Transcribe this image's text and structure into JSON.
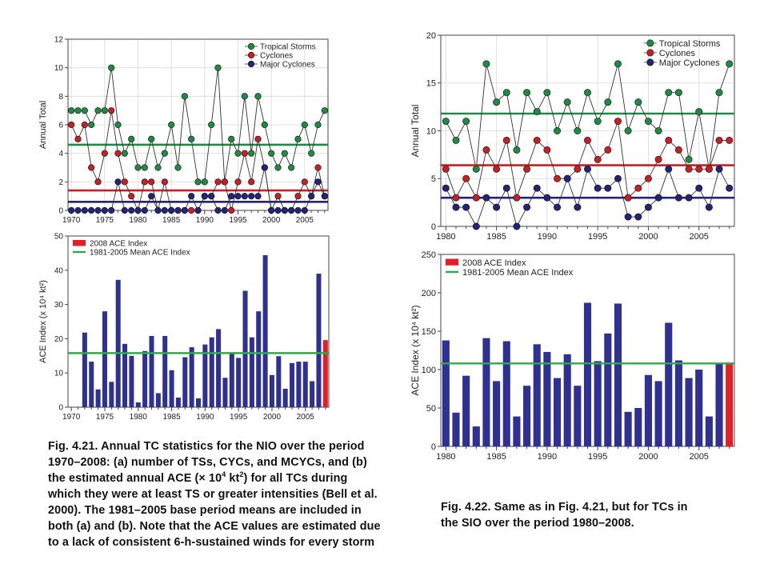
{
  "colors": {
    "ts": "#1f8a43",
    "cyc": "#c81e26",
    "mcyc": "#23237a",
    "bar": "#2e3192",
    "bar_highlight": "#e31e24",
    "mean_line": "#2daa4a",
    "grid": "#d8d8d8",
    "line": "#333333"
  },
  "captions": {
    "left_lines": [
      "Fig. 4.21. Annual TC statistics for the NIO over the period",
      "1970–2008: (a) number of TSs, CYCs, and MCYCs, and (b)",
      "the estimated annual ACE (× 10",
      "4",
      " kt",
      "2",
      ") for all TCs during",
      "which they were at least TS or greater intensities (Bell et al.",
      "2000). The 1981–2005 base period means are included in",
      "both (a) and (b). Note that the ACE values are estimated due",
      "to a lack of consistent 6-h-sustained winds for every storm"
    ],
    "right_lines": [
      "Fig. 4.22. Same as in Fig. 4.21, but for TCs in",
      "the SIO over the period 1980–2008."
    ]
  },
  "chart_data": [
    {
      "id": "nio_counts",
      "type": "line",
      "title": "",
      "xlabel": "",
      "ylabel": "Annual Total",
      "ylim": [
        0,
        12
      ],
      "yticks": [
        0,
        2,
        4,
        6,
        8,
        10,
        12
      ],
      "xlim": [
        1969.5,
        2008.5
      ],
      "xticks": [
        1970,
        1975,
        1980,
        1985,
        1990,
        1995,
        2000,
        2005
      ],
      "grid": true,
      "legend_position": "top-right",
      "x": [
        1970,
        1971,
        1972,
        1973,
        1974,
        1975,
        1976,
        1977,
        1978,
        1979,
        1980,
        1981,
        1982,
        1983,
        1984,
        1985,
        1986,
        1987,
        1988,
        1989,
        1990,
        1991,
        1992,
        1993,
        1994,
        1995,
        1996,
        1997,
        1998,
        1999,
        2000,
        2001,
        2002,
        2003,
        2004,
        2005,
        2006,
        2007,
        2008
      ],
      "series": [
        {
          "name": "Tropical Storms",
          "key": "ts",
          "values": [
            7,
            7,
            7,
            6,
            7,
            7,
            10,
            6,
            4,
            5,
            3,
            3,
            5,
            3,
            4,
            6,
            3,
            8,
            5,
            2,
            2,
            6,
            10,
            2,
            5,
            4,
            8,
            4,
            8,
            6,
            4,
            3,
            4,
            3,
            5,
            6,
            4,
            6,
            7
          ],
          "mean": 4.6
        },
        {
          "name": "Cyclones",
          "key": "cyc",
          "values": [
            6,
            5,
            6,
            3,
            2,
            4,
            7,
            4,
            2,
            1,
            0,
            2,
            2,
            0,
            2,
            0,
            0,
            0,
            0,
            0,
            1,
            1,
            2,
            2,
            0,
            2,
            4,
            2,
            5,
            3,
            0,
            1,
            0,
            0,
            1,
            2,
            1,
            3,
            1
          ],
          "mean": 1.4
        },
        {
          "name": "Major Cyclones",
          "key": "mcyc",
          "values": [
            0,
            0,
            0,
            0,
            0,
            0,
            0,
            2,
            0,
            0,
            0,
            0,
            1,
            0,
            0,
            0,
            0,
            0,
            1,
            0,
            1,
            1,
            0,
            0,
            1,
            1,
            1,
            1,
            1,
            3,
            0,
            0,
            0,
            0,
            0,
            0,
            1,
            2,
            1
          ],
          "mean": 0.6
        }
      ]
    },
    {
      "id": "nio_ace",
      "type": "bar",
      "title": "",
      "xlabel": "",
      "ylabel": "ACE Index (x 10⁴ kt²)",
      "ylim": [
        0,
        50
      ],
      "yticks": [
        0,
        10,
        20,
        30,
        40,
        50
      ],
      "xlim": [
        1969.5,
        2008.5
      ],
      "xticks": [
        1970,
        1975,
        1980,
        1985,
        1990,
        1995,
        2000,
        2005
      ],
      "legend_position": "top-left",
      "legend": [
        "2008 ACE Index",
        "1981-2005 Mean ACE Index"
      ],
      "x": [
        1972,
        1973,
        1974,
        1975,
        1976,
        1977,
        1978,
        1979,
        1980,
        1981,
        1982,
        1983,
        1984,
        1985,
        1986,
        1987,
        1988,
        1989,
        1990,
        1991,
        1992,
        1993,
        1994,
        1995,
        1996,
        1997,
        1998,
        1999,
        2000,
        2001,
        2002,
        2003,
        2004,
        2005,
        2006,
        2007,
        2008
      ],
      "values": [
        21.8,
        13.3,
        5.2,
        28,
        7.4,
        37.2,
        18.5,
        15,
        1.4,
        16.4,
        20.8,
        4.1,
        20.8,
        10.8,
        2.8,
        14.6,
        17.5,
        2.6,
        18.3,
        20.4,
        22.8,
        8.6,
        15.6,
        14.4,
        34,
        20.4,
        28,
        44.4,
        9.4,
        14.9,
        5.4,
        12.9,
        13.3,
        13.3,
        7.6,
        39,
        19.6
      ],
      "highlight_year": 2008,
      "mean": 15.8
    },
    {
      "id": "sio_counts",
      "type": "line",
      "title": "",
      "xlabel": "",
      "ylabel": "Annual Total",
      "ylim": [
        0,
        20
      ],
      "yticks": [
        0,
        5,
        10,
        15,
        20
      ],
      "xlim": [
        1979.5,
        2008.5
      ],
      "xticks": [
        1980,
        1985,
        1990,
        1995,
        2000,
        2005
      ],
      "grid": true,
      "legend_position": "top-right",
      "x": [
        1980,
        1981,
        1982,
        1983,
        1984,
        1985,
        1986,
        1987,
        1988,
        1989,
        1990,
        1991,
        1992,
        1993,
        1994,
        1995,
        1996,
        1997,
        1998,
        1999,
        2000,
        2001,
        2002,
        2003,
        2004,
        2005,
        2006,
        2007,
        2008
      ],
      "series": [
        {
          "name": "Tropical Storms",
          "key": "ts",
          "values": [
            11,
            9,
            11,
            6,
            17,
            13,
            14,
            8,
            14,
            12,
            14,
            10,
            13,
            10,
            14,
            11,
            13,
            17,
            10,
            13,
            11,
            10,
            14,
            14,
            7,
            12,
            6,
            14,
            17
          ],
          "mean": 11.8
        },
        {
          "name": "Cyclones",
          "key": "cyc",
          "values": [
            6,
            3,
            5,
            3,
            8,
            6,
            9,
            3,
            6,
            9,
            8,
            5,
            5,
            6,
            9,
            7,
            8,
            11,
            3,
            4,
            5,
            7,
            9,
            8,
            6,
            6,
            6,
            9,
            9
          ],
          "mean": 6.4
        },
        {
          "name": "Major Cyclones",
          "key": "mcyc",
          "values": [
            4,
            2,
            2,
            0,
            3,
            2,
            4,
            0,
            2,
            4,
            3,
            2,
            5,
            2,
            6,
            4,
            4,
            5,
            1,
            1,
            2,
            3,
            6,
            3,
            3,
            4,
            2,
            6,
            4
          ],
          "mean": 3.0
        }
      ]
    },
    {
      "id": "sio_ace",
      "type": "bar",
      "title": "",
      "xlabel": "",
      "ylabel": "ACE Index (x 10⁴ kt²)",
      "ylim": [
        0,
        250
      ],
      "yticks": [
        0,
        50,
        100,
        150,
        200,
        250
      ],
      "xlim": [
        1979.5,
        2008.5
      ],
      "xticks": [
        1980,
        1985,
        1990,
        1995,
        2000,
        2005
      ],
      "legend_position": "top-left",
      "legend": [
        "2008 ACE Index",
        "1981-2005 Mean ACE Index"
      ],
      "x": [
        1980,
        1981,
        1982,
        1983,
        1984,
        1985,
        1986,
        1987,
        1988,
        1989,
        1990,
        1991,
        1992,
        1993,
        1994,
        1995,
        1996,
        1997,
        1998,
        1999,
        2000,
        2001,
        2002,
        2003,
        2004,
        2005,
        2006,
        2007,
        2008
      ],
      "values": [
        138,
        44,
        92,
        26,
        141,
        85,
        137,
        39,
        79,
        133,
        123,
        89,
        120,
        79,
        187,
        111,
        147,
        186,
        45,
        50,
        93,
        85,
        161,
        112,
        89,
        100,
        39,
        108,
        108
      ],
      "highlight_year": 2008,
      "mean": 108
    }
  ]
}
